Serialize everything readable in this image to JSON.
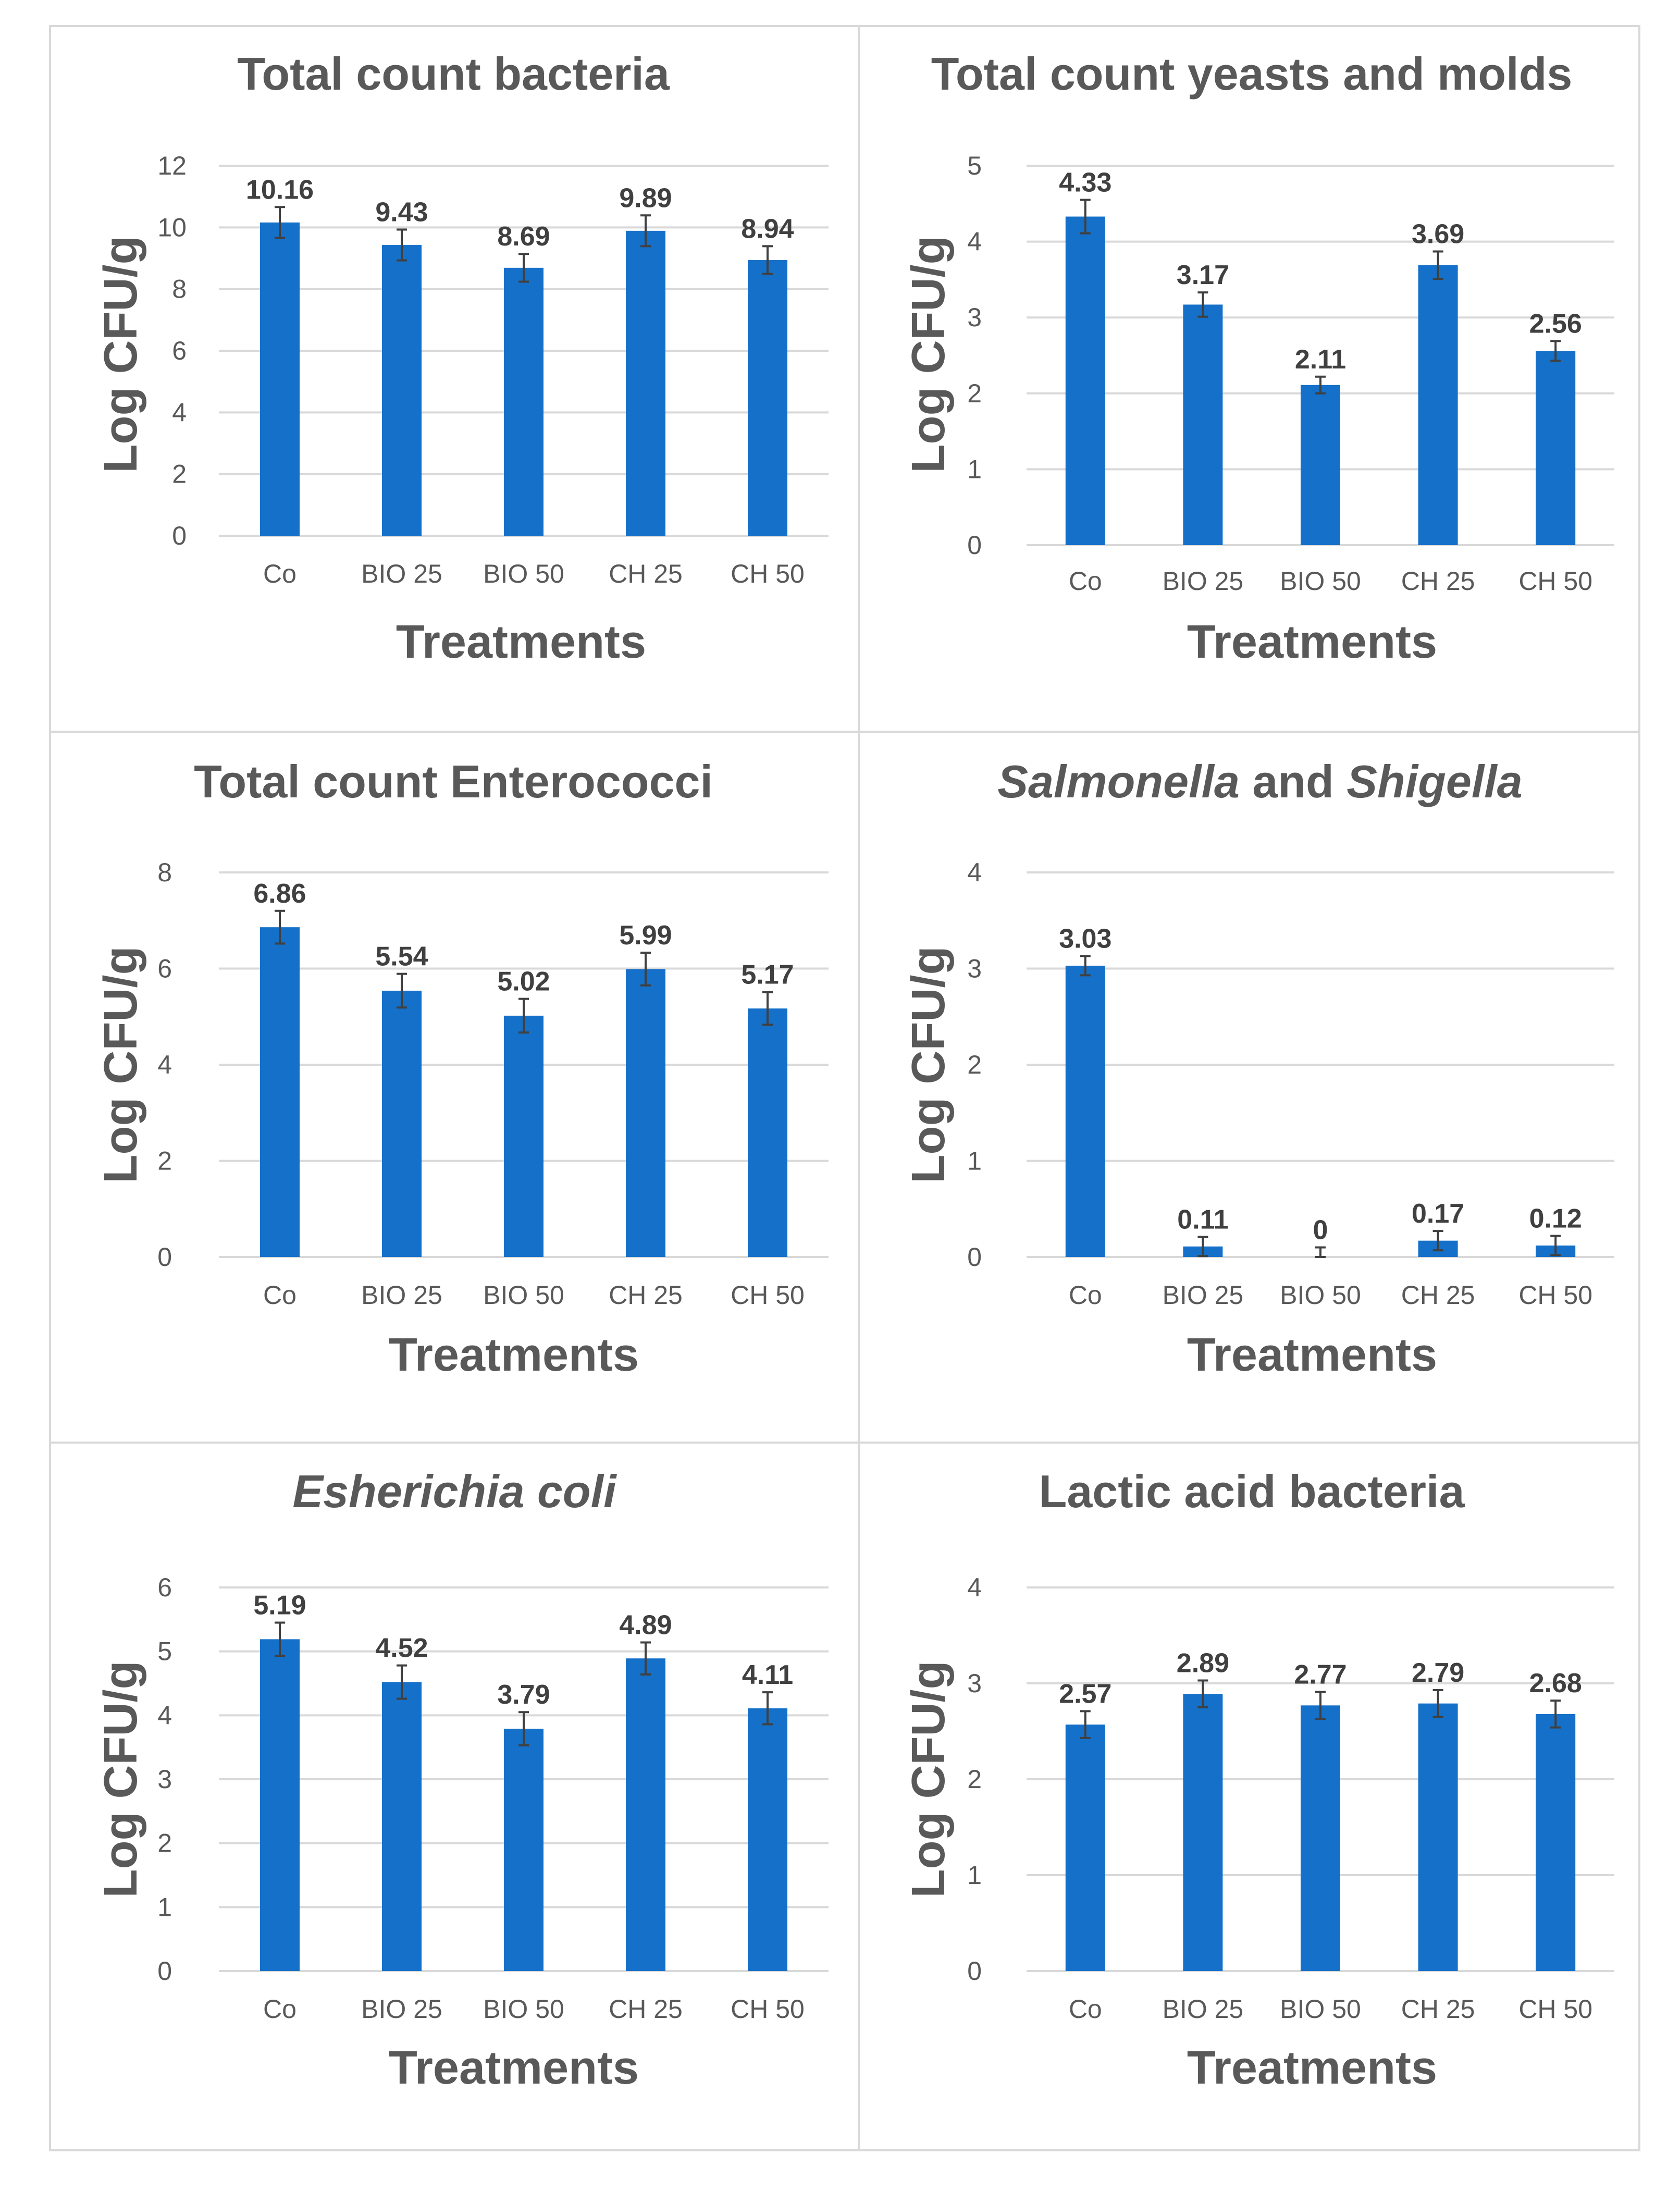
{
  "chart_data": [
    {
      "type": "bar",
      "title": "Total count  bacteria",
      "title_parts": [
        {
          "text": "Total count  bacteria",
          "italic": false
        }
      ],
      "categories": [
        "Co",
        "BIO 25",
        "BIO 50",
        "CH 25",
        "CH 50"
      ],
      "values": [
        10.16,
        9.43,
        8.69,
        9.89,
        8.94
      ],
      "labels": [
        "10.16",
        "9.43",
        "8.69",
        "9.89",
        "8.94"
      ],
      "errors": [
        0.5,
        0.5,
        0.45,
        0.5,
        0.45
      ],
      "xlabel": "Treatments",
      "ylabel": "Log CFU/g",
      "ylim": [
        0,
        12
      ],
      "yticks": [
        0,
        2,
        4,
        6,
        8,
        10,
        12
      ],
      "color": "#1570c9",
      "grid": true
    },
    {
      "type": "bar",
      "title": "Total count yeasts and molds",
      "title_parts": [
        {
          "text": "Total count yeasts and molds",
          "italic": false
        }
      ],
      "categories": [
        "Co",
        "BIO 25",
        "BIO 50",
        "CH 25",
        "CH 50"
      ],
      "values": [
        4.33,
        3.17,
        2.11,
        3.69,
        2.56
      ],
      "labels": [
        "4.33",
        "3.17",
        "2.11",
        "3.69",
        "2.56"
      ],
      "errors": [
        0.22,
        0.16,
        0.11,
        0.18,
        0.13
      ],
      "xlabel": "Treatments",
      "ylabel": "Log CFU/g",
      "ylim": [
        0,
        5
      ],
      "yticks": [
        0,
        1,
        2,
        3,
        4,
        5
      ],
      "color": "#1570c9",
      "grid": true
    },
    {
      "type": "bar",
      "title": "Total count Enterococci",
      "title_parts": [
        {
          "text": "Total count Enterococci",
          "italic": false
        }
      ],
      "categories": [
        "Co",
        "BIO 25",
        "BIO 50",
        "CH 25",
        "CH 50"
      ],
      "values": [
        6.86,
        5.54,
        5.02,
        5.99,
        5.17
      ],
      "labels": [
        "6.86",
        "5.54",
        "5.02",
        "5.99",
        "5.17"
      ],
      "errors": [
        0.34,
        0.35,
        0.35,
        0.34,
        0.34
      ],
      "xlabel": "Treatments",
      "ylabel": "Log CFU/g",
      "ylim": [
        0,
        8
      ],
      "yticks": [
        0,
        2,
        4,
        6,
        8
      ],
      "color": "#1570c9",
      "grid": true
    },
    {
      "type": "bar",
      "title": "Salmonella  and Shigella",
      "title_parts": [
        {
          "text": "Salmonella",
          "italic": true
        },
        {
          "text": "  and ",
          "italic": false
        },
        {
          "text": "Shigella",
          "italic": true
        }
      ],
      "categories": [
        "Co",
        "BIO 25",
        "BIO 50",
        "CH 25",
        "CH 50"
      ],
      "values": [
        3.03,
        0.11,
        0,
        0.17,
        0.12
      ],
      "labels": [
        "3.03",
        "0.11",
        "0",
        "0.17",
        "0.12"
      ],
      "errors": [
        0.1,
        0.1,
        0.1,
        0.1,
        0.1
      ],
      "xlabel": "Treatments",
      "ylabel": "Log CFU/g",
      "ylim": [
        0,
        4
      ],
      "yticks": [
        0,
        1,
        2,
        3,
        4
      ],
      "color": "#1570c9",
      "grid": true
    },
    {
      "type": "bar",
      "title": "Esherichia coli",
      "title_parts": [
        {
          "text": "Esherichia coli",
          "italic": true
        }
      ],
      "categories": [
        "Co",
        "BIO 25",
        "BIO 50",
        "CH 25",
        "CH 50"
      ],
      "values": [
        5.19,
        4.52,
        3.79,
        4.89,
        4.11
      ],
      "labels": [
        "5.19",
        "4.52",
        "3.79",
        "4.89",
        "4.11"
      ],
      "errors": [
        0.26,
        0.26,
        0.26,
        0.25,
        0.25
      ],
      "xlabel": "Treatments",
      "ylabel": "Log CFU/g",
      "ylim": [
        0,
        6
      ],
      "yticks": [
        0,
        1,
        2,
        3,
        4,
        5,
        6
      ],
      "color": "#1570c9",
      "grid": true
    },
    {
      "type": "bar",
      "title": "Lactic acid bacteria",
      "title_parts": [
        {
          "text": "Lactic acid bacteria",
          "italic": false
        }
      ],
      "categories": [
        "Co",
        "BIO 25",
        "BIO 50",
        "CH 25",
        "CH 50"
      ],
      "values": [
        2.57,
        2.89,
        2.77,
        2.79,
        2.68
      ],
      "labels": [
        "2.57",
        "2.89",
        "2.77",
        "2.79",
        "2.68"
      ],
      "errors": [
        0.14,
        0.14,
        0.14,
        0.14,
        0.14
      ],
      "xlabel": "Treatments",
      "ylabel": "Log CFU/g",
      "ylim": [
        0,
        4
      ],
      "yticks": [
        0,
        1,
        2,
        3,
        4
      ],
      "color": "#1570c9",
      "grid": true
    }
  ]
}
